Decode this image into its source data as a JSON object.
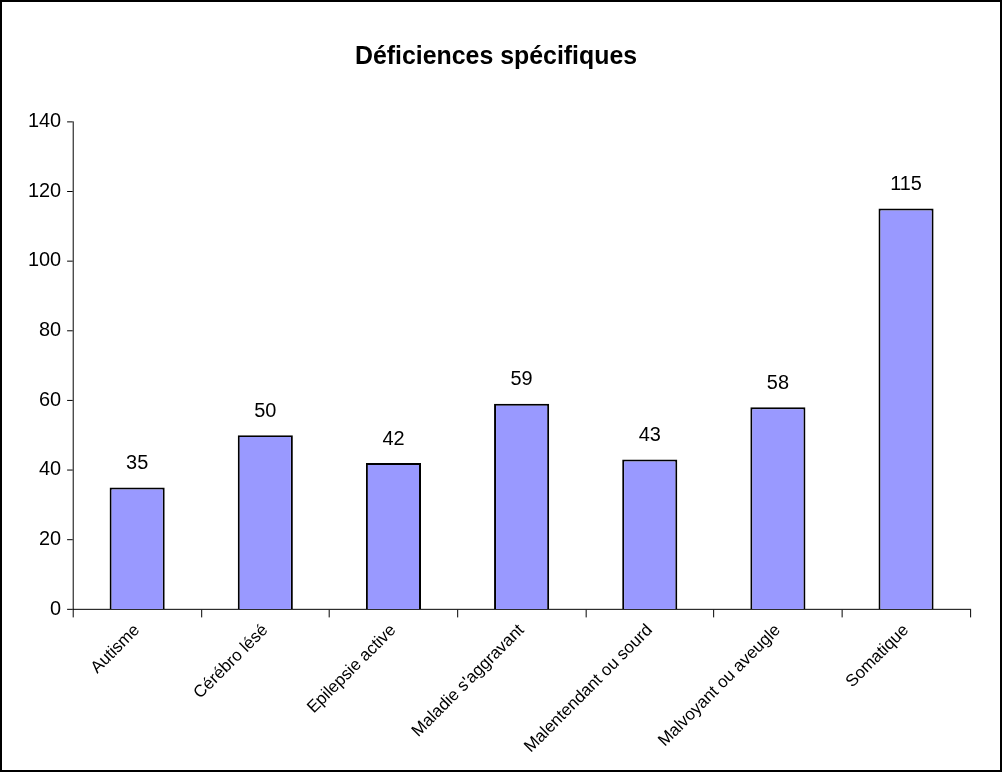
{
  "chart_data": {
    "type": "bar",
    "title": "Déficiences spécifiques",
    "categories": [
      "Autisme",
      "Cérébro lésé",
      "Epilepsie active",
      "Maladie s'aggravant",
      "Malentendant ou sourd",
      "Malvoyant ou aveugle",
      "Somatique"
    ],
    "values": [
      35,
      50,
      42,
      59,
      43,
      58,
      115
    ],
    "color": "#9999ff",
    "ylim": [
      0,
      140
    ],
    "yticks": [
      0,
      20,
      40,
      60,
      80,
      100,
      120,
      140
    ],
    "grid": false,
    "legend": false,
    "data_labels": true
  }
}
